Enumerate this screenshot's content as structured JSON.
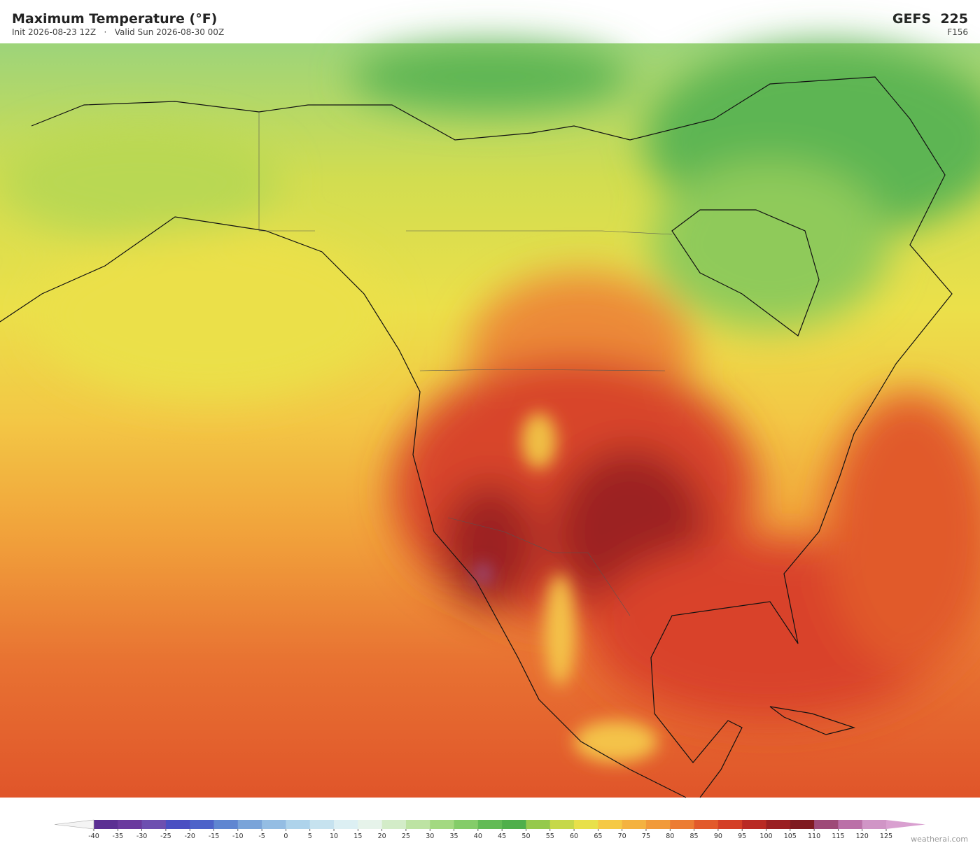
{
  "header": {
    "title": "Maximum Temperature  (°F)",
    "subtitle": "Init 2026-08-23 12Z   ·   Valid Sun 2026-08-30 00Z",
    "model": "GEFS  225",
    "forecast_hour": "F156"
  },
  "colorbar": {
    "ticks": [
      -40,
      -35,
      -30,
      -25,
      -20,
      -15,
      -10,
      -5,
      0,
      5,
      10,
      15,
      20,
      25,
      30,
      35,
      40,
      45,
      50,
      55,
      60,
      65,
      70,
      75,
      80,
      85,
      90,
      95,
      100,
      105,
      110,
      115,
      120,
      125
    ],
    "colors": [
      "#5b2f93",
      "#6a3a9e",
      "#6d4fb0",
      "#4a4fc2",
      "#4d63c9",
      "#5f86d1",
      "#7aa4d9",
      "#94bde3",
      "#aed3eb",
      "#c6e2ef",
      "#dceff3",
      "#e6f3ea",
      "#d3ecc8",
      "#bde3a3",
      "#a3d981",
      "#84cc69",
      "#62bb55",
      "#4faf4b",
      "#95c94c",
      "#c6d84a",
      "#e8e04a",
      "#f5c945",
      "#f4b240",
      "#f19a3a",
      "#ec7c33",
      "#e25a2b",
      "#d43f26",
      "#b92a24",
      "#9a1f22",
      "#7f1a20",
      "#9e4a78",
      "#bb70a8",
      "#d095c6"
    ],
    "extend_colors": [
      "#f4f4f4",
      "#d9a0d0"
    ]
  },
  "watermark": "weatherai.com"
}
